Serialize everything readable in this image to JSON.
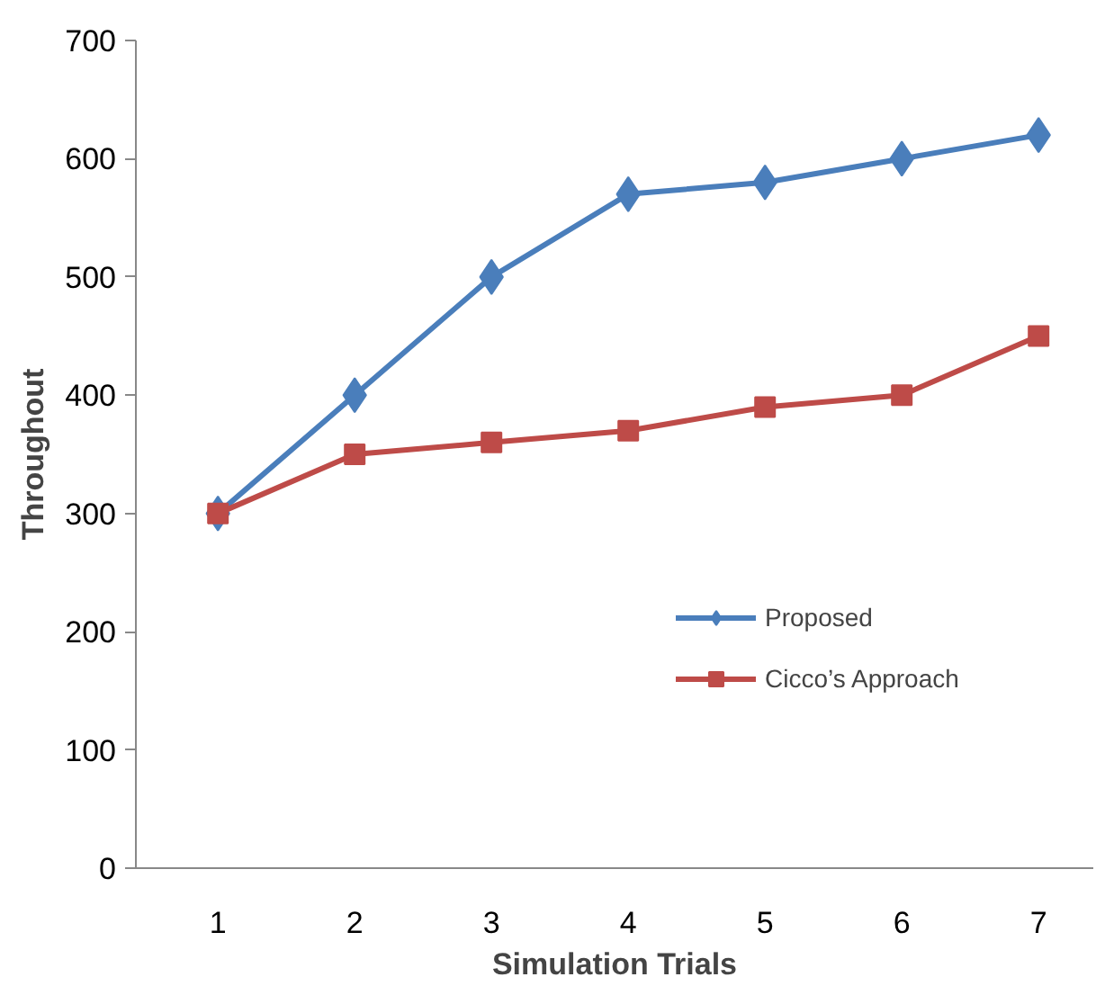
{
  "chart_data": {
    "type": "line",
    "xlabel": "Simulation Trials",
    "ylabel": "Throughout",
    "categories": [
      "1",
      "2",
      "3",
      "4",
      "5",
      "6",
      "7"
    ],
    "ylim": [
      0,
      700
    ],
    "yticks": [
      0,
      100,
      200,
      300,
      400,
      500,
      600,
      700
    ],
    "grid": false,
    "legend": "right",
    "line_style": "solid",
    "series": [
      {
        "name": "Proposed",
        "color": "#4a7ebb",
        "marker": "diamond",
        "values": [
          300,
          400,
          500,
          570,
          580,
          600,
          620
        ]
      },
      {
        "name": "Cicco’s Approach",
        "color": "#be4b48",
        "marker": "square",
        "values": [
          300,
          350,
          360,
          370,
          390,
          400,
          450
        ]
      }
    ]
  }
}
